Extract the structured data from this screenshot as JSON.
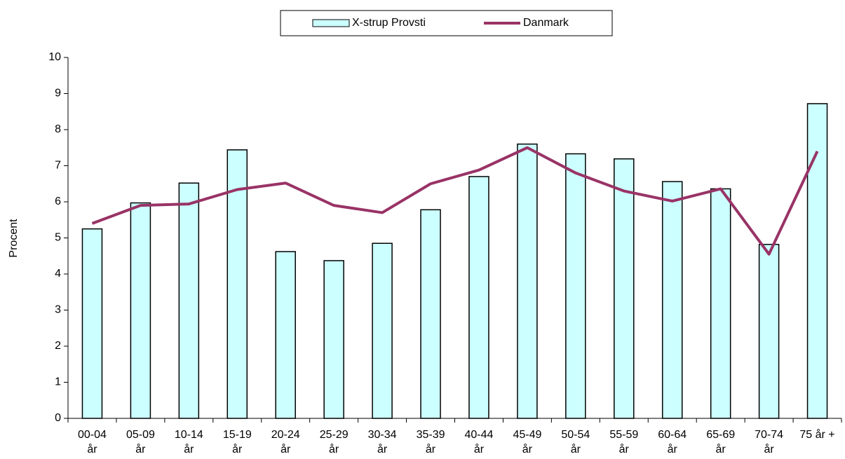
{
  "chart_data": {
    "type": "bar-line",
    "categories": [
      [
        "00-04",
        "år"
      ],
      [
        "05-09",
        "år"
      ],
      [
        "10-14",
        "år"
      ],
      [
        "15-19",
        "år"
      ],
      [
        "20-24",
        "år"
      ],
      [
        "25-29",
        "år"
      ],
      [
        "30-34",
        "år"
      ],
      [
        "35-39",
        "år"
      ],
      [
        "40-44",
        "år"
      ],
      [
        "45-49",
        "år"
      ],
      [
        "50-54",
        "år"
      ],
      [
        "55-59",
        "år"
      ],
      [
        "60-64",
        "år"
      ],
      [
        "65-69",
        "år"
      ],
      [
        "70-74",
        "år"
      ],
      [
        "75 år +"
      ]
    ],
    "series": [
      {
        "name": "X-strup Provsti",
        "type": "bar",
        "color": "#ccffff",
        "values": [
          5.25,
          5.97,
          6.52,
          7.44,
          4.62,
          4.37,
          4.85,
          5.78,
          6.7,
          7.6,
          7.33,
          7.19,
          6.56,
          6.36,
          4.82,
          8.72
        ]
      },
      {
        "name": "Danmark",
        "type": "line",
        "color": "#993366",
        "values": [
          5.4,
          5.9,
          5.94,
          6.34,
          6.52,
          5.9,
          5.7,
          6.5,
          6.88,
          7.5,
          6.8,
          6.3,
          6.02,
          6.36,
          4.55,
          7.4
        ]
      }
    ],
    "y_label": "Procent",
    "ylim": [
      0,
      10
    ],
    "yticks": [
      0,
      1,
      2,
      3,
      4,
      5,
      6,
      7,
      8,
      9,
      10
    ],
    "legend": "top"
  }
}
